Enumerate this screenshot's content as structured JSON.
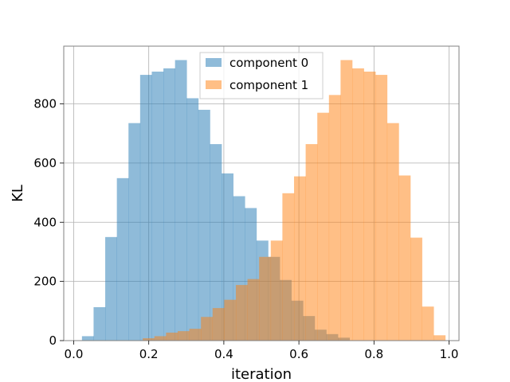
{
  "chart_data": {
    "type": "bar",
    "subtype": "overlapping-histogram",
    "xlabel": "iteration",
    "ylabel": "KL",
    "xlim": [
      -0.0265,
      1.0265
    ],
    "ylim": [
      0,
      995
    ],
    "xticks": [
      0.0,
      0.2,
      0.4,
      0.6,
      0.8,
      1.0
    ],
    "xtick_labels": [
      "0.0",
      "0.2",
      "0.4",
      "0.6",
      "0.8",
      "1.0"
    ],
    "yticks": [
      0,
      200,
      400,
      600,
      800
    ],
    "ytick_labels": [
      "0",
      "200",
      "400",
      "600",
      "800"
    ],
    "grid": true,
    "legend_position": "top-center",
    "series": [
      {
        "name": "component 0",
        "color": "#1f77b4",
        "opacity": 0.5,
        "bins": [
          [
            0.022,
            0.053,
            15
          ],
          [
            0.053,
            0.084,
            113
          ],
          [
            0.084,
            0.115,
            350
          ],
          [
            0.115,
            0.146,
            549
          ],
          [
            0.146,
            0.177,
            735
          ],
          [
            0.177,
            0.208,
            898
          ],
          [
            0.208,
            0.239,
            909
          ],
          [
            0.239,
            0.27,
            920
          ],
          [
            0.27,
            0.301,
            948
          ],
          [
            0.301,
            0.332,
            819
          ],
          [
            0.332,
            0.363,
            780
          ],
          [
            0.363,
            0.394,
            664
          ],
          [
            0.394,
            0.425,
            565
          ],
          [
            0.425,
            0.456,
            488
          ],
          [
            0.456,
            0.487,
            448
          ],
          [
            0.487,
            0.518,
            338
          ],
          [
            0.518,
            0.549,
            283
          ],
          [
            0.549,
            0.58,
            205
          ],
          [
            0.58,
            0.611,
            135
          ],
          [
            0.611,
            0.642,
            83
          ],
          [
            0.642,
            0.673,
            37
          ],
          [
            0.673,
            0.704,
            22
          ],
          [
            0.704,
            0.735,
            10
          ]
        ]
      },
      {
        "name": "component 1",
        "color": "#ff7f0e",
        "opacity": 0.5,
        "bins": [
          [
            0.184,
            0.215,
            8
          ],
          [
            0.215,
            0.246,
            15
          ],
          [
            0.246,
            0.277,
            27
          ],
          [
            0.277,
            0.308,
            32
          ],
          [
            0.308,
            0.339,
            40
          ],
          [
            0.339,
            0.37,
            80
          ],
          [
            0.37,
            0.401,
            110
          ],
          [
            0.401,
            0.432,
            138
          ],
          [
            0.432,
            0.463,
            188
          ],
          [
            0.463,
            0.494,
            208
          ],
          [
            0.494,
            0.525,
            283
          ],
          [
            0.525,
            0.556,
            338
          ],
          [
            0.556,
            0.587,
            498
          ],
          [
            0.587,
            0.618,
            555
          ],
          [
            0.618,
            0.649,
            664
          ],
          [
            0.649,
            0.68,
            770
          ],
          [
            0.68,
            0.711,
            830
          ],
          [
            0.711,
            0.742,
            948
          ],
          [
            0.742,
            0.773,
            920
          ],
          [
            0.773,
            0.804,
            909
          ],
          [
            0.804,
            0.835,
            898
          ],
          [
            0.835,
            0.866,
            735
          ],
          [
            0.866,
            0.897,
            558
          ],
          [
            0.897,
            0.928,
            348
          ],
          [
            0.928,
            0.959,
            115
          ],
          [
            0.959,
            0.99,
            18
          ]
        ]
      }
    ]
  }
}
